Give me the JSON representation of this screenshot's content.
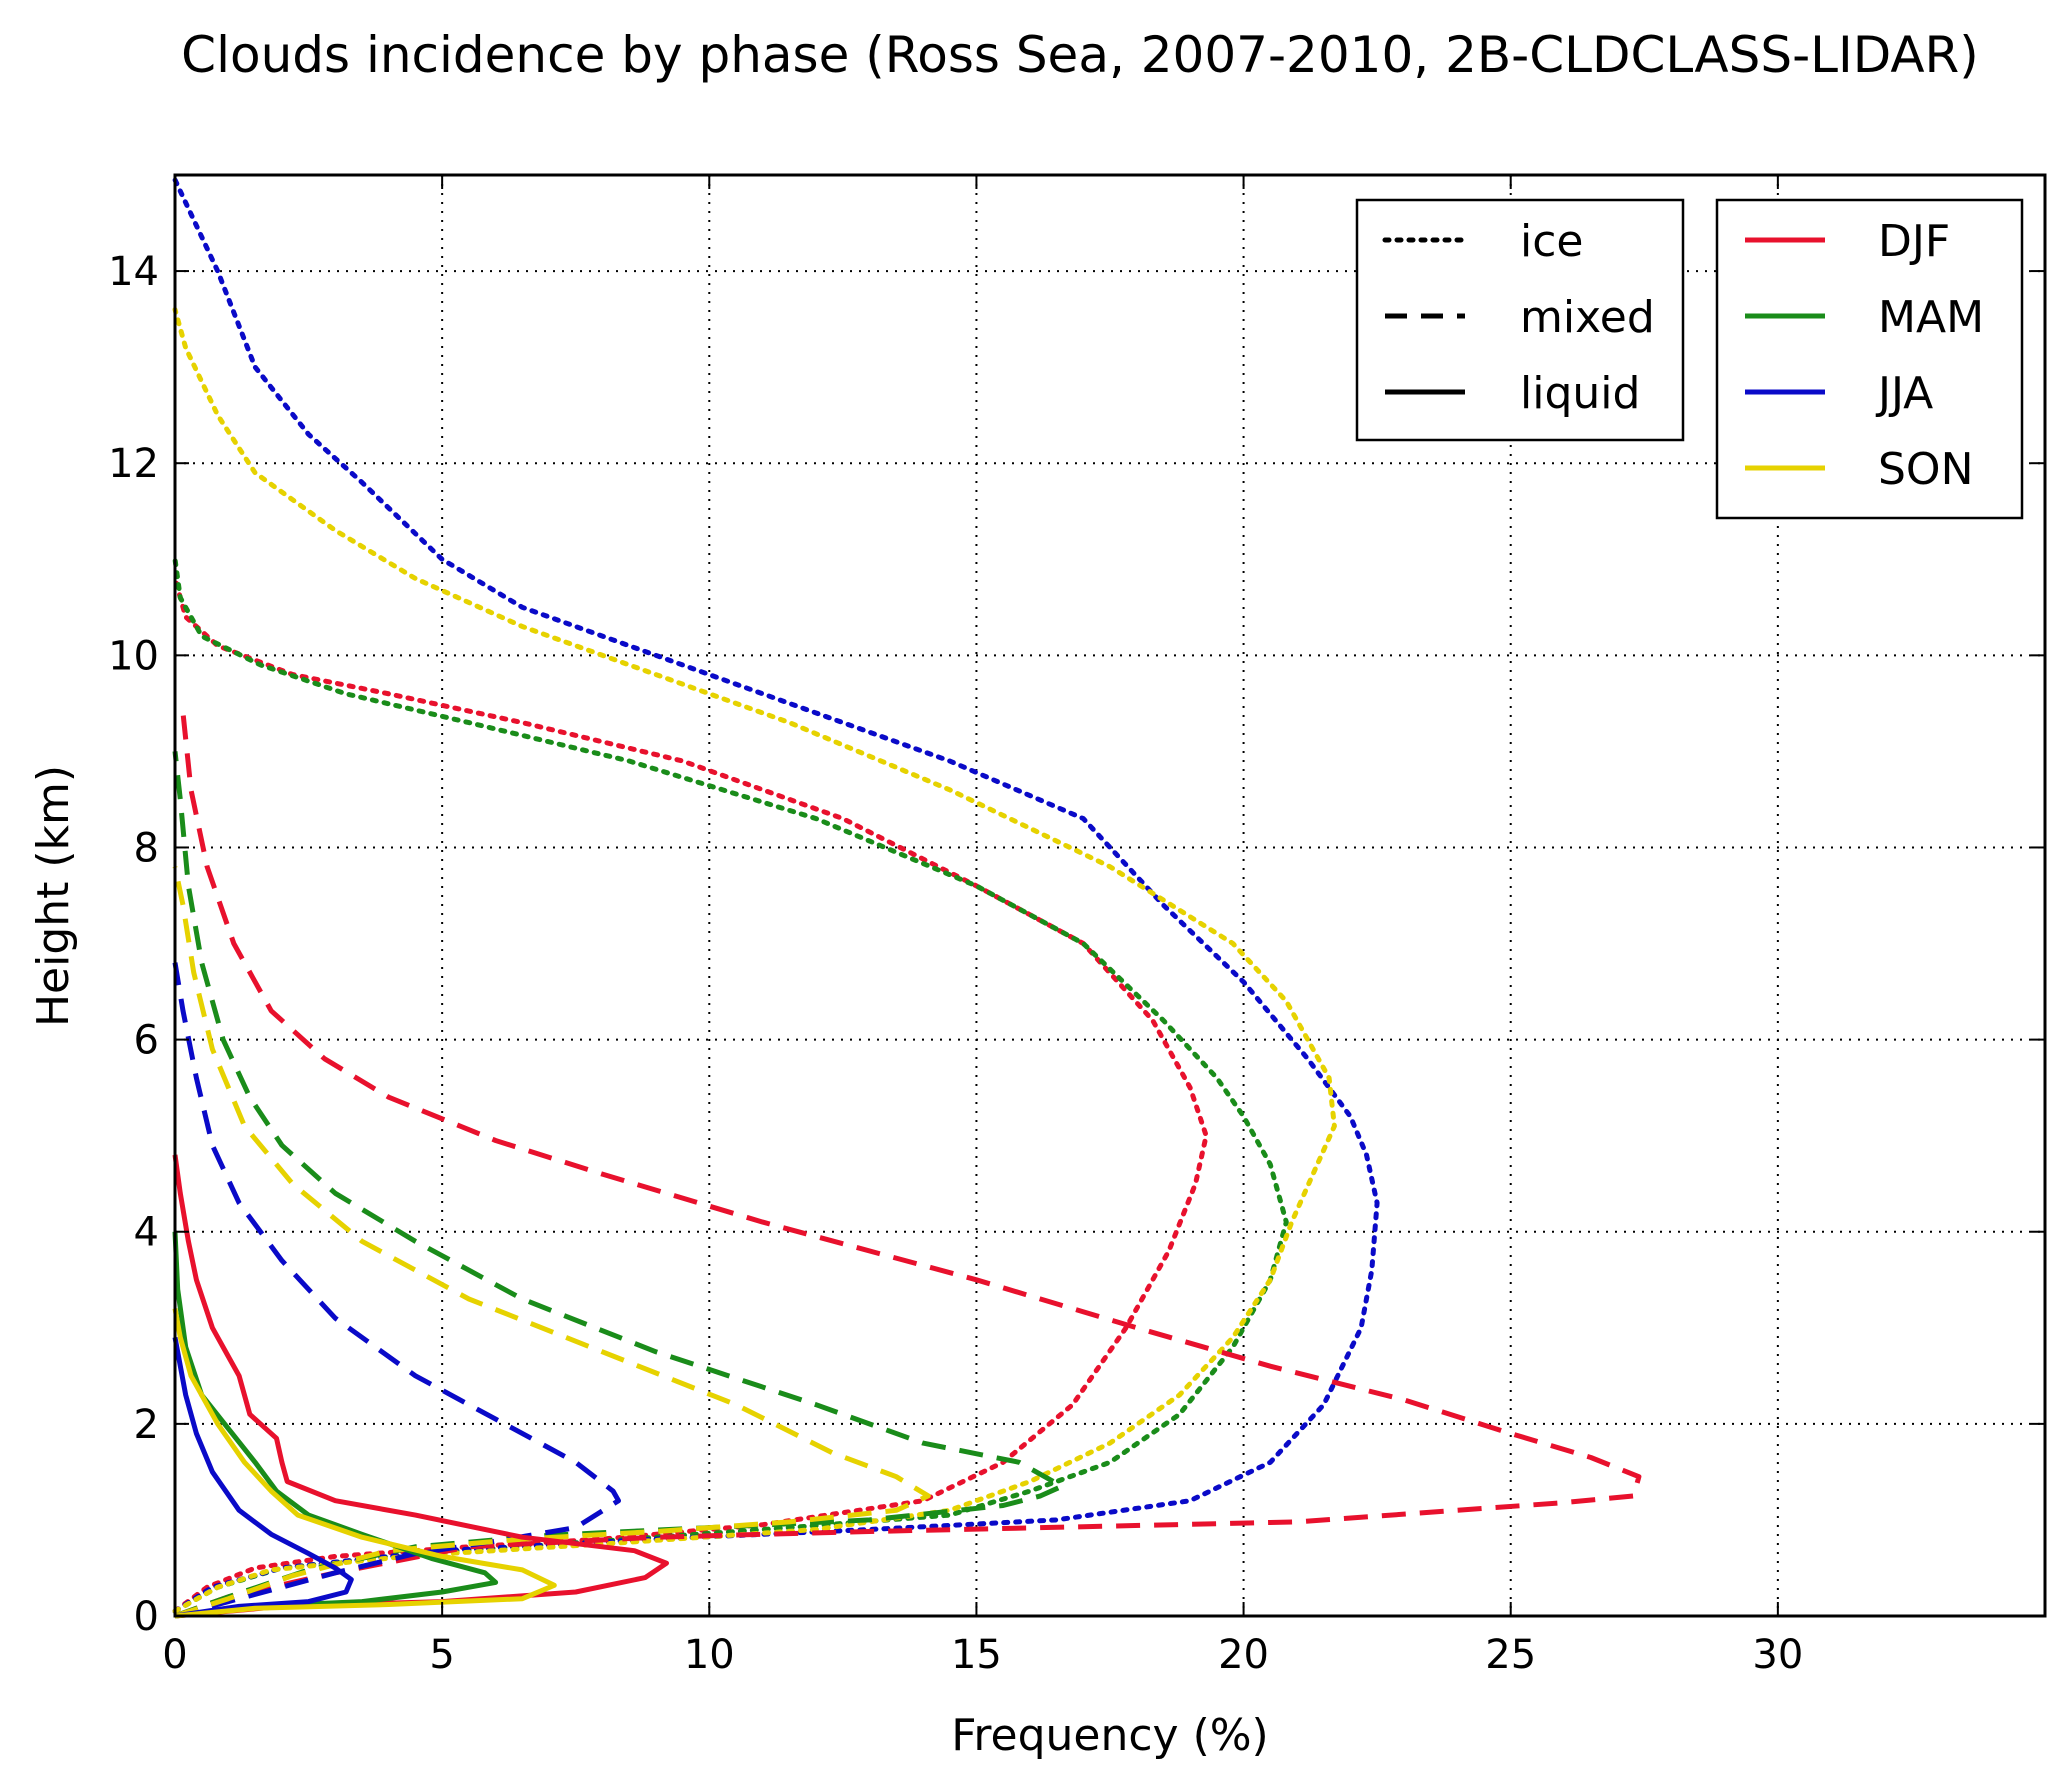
{
  "chart_data": {
    "type": "line",
    "title": "Clouds incidence by phase (Ross Sea, 2007-2010, 2B-CLDCLASS-LIDAR)",
    "xlabel": "Frequency (%)",
    "ylabel": "Height (km)",
    "xlim": [
      0,
      35
    ],
    "ylim": [
      0,
      15
    ],
    "xticks": [
      "0",
      "5",
      "10",
      "15",
      "20",
      "25",
      "30"
    ],
    "yticks": [
      "0",
      "2",
      "4",
      "6",
      "8",
      "10",
      "12",
      "14"
    ],
    "grid": true,
    "legend_phase": {
      "placement": "top-right",
      "entries": [
        {
          "label": "ice",
          "style": "dotted"
        },
        {
          "label": "mixed",
          "style": "dashed"
        },
        {
          "label": "liquid",
          "style": "solid"
        }
      ]
    },
    "legend_season": {
      "placement": "top-right",
      "entries": [
        {
          "label": "DJF",
          "color": "#e8112d"
        },
        {
          "label": "MAM",
          "color": "#1a8c1a"
        },
        {
          "label": "JJA",
          "color": "#0a0ac8"
        },
        {
          "label": "SON",
          "color": "#e6d200"
        }
      ]
    },
    "series": [
      {
        "season": "DJF",
        "phase": "ice",
        "color": "#e8112d",
        "style": "dotted",
        "points": [
          [
            0,
            0.05
          ],
          [
            0.6,
            0.3
          ],
          [
            1.5,
            0.5
          ],
          [
            3,
            0.62
          ],
          [
            5.5,
            0.72
          ],
          [
            8,
            0.8
          ],
          [
            11,
            0.95
          ],
          [
            14,
            1.2
          ],
          [
            15.5,
            1.6
          ],
          [
            16.8,
            2.2
          ],
          [
            17.8,
            3
          ],
          [
            18.6,
            3.8
          ],
          [
            19.1,
            4.5
          ],
          [
            19.3,
            5
          ],
          [
            19,
            5.5
          ],
          [
            18.3,
            6.2
          ],
          [
            17,
            7
          ],
          [
            15,
            7.6
          ],
          [
            12.5,
            8.3
          ],
          [
            9.5,
            8.9
          ],
          [
            6.5,
            9.3
          ],
          [
            4,
            9.6
          ],
          [
            2.2,
            9.8
          ],
          [
            0.8,
            10.1
          ],
          [
            0.2,
            10.4
          ],
          [
            0,
            10.8
          ]
        ]
      },
      {
        "season": "MAM",
        "phase": "ice",
        "color": "#1a8c1a",
        "style": "dotted",
        "points": [
          [
            0,
            0.05
          ],
          [
            0.8,
            0.3
          ],
          [
            2,
            0.5
          ],
          [
            4.5,
            0.65
          ],
          [
            8,
            0.78
          ],
          [
            11.5,
            0.92
          ],
          [
            14.5,
            1.05
          ],
          [
            16,
            1.3
          ],
          [
            17.5,
            1.6
          ],
          [
            18.8,
            2.1
          ],
          [
            19.8,
            2.8
          ],
          [
            20.5,
            3.5
          ],
          [
            20.8,
            4.1
          ],
          [
            20.5,
            4.7
          ],
          [
            20,
            5.2
          ],
          [
            19.5,
            5.6
          ],
          [
            18.5,
            6.2
          ],
          [
            17,
            7
          ],
          [
            15,
            7.6
          ],
          [
            12,
            8.3
          ],
          [
            8.5,
            8.9
          ],
          [
            5.5,
            9.3
          ],
          [
            3.2,
            9.6
          ],
          [
            1.6,
            9.9
          ],
          [
            0.5,
            10.2
          ],
          [
            0.1,
            10.6
          ],
          [
            0,
            11
          ]
        ]
      },
      {
        "season": "JJA",
        "phase": "ice",
        "color": "#0a0ac8",
        "style": "dotted",
        "points": [
          [
            0,
            0.05
          ],
          [
            0.7,
            0.3
          ],
          [
            2,
            0.5
          ],
          [
            5,
            0.68
          ],
          [
            9,
            0.8
          ],
          [
            13,
            0.9
          ],
          [
            16.5,
            1
          ],
          [
            19,
            1.2
          ],
          [
            20.5,
            1.6
          ],
          [
            21.5,
            2.2
          ],
          [
            22.2,
            3
          ],
          [
            22.4,
            3.6
          ],
          [
            22.5,
            4.3
          ],
          [
            22.3,
            4.8
          ],
          [
            22,
            5.2
          ],
          [
            21.2,
            5.8
          ],
          [
            20,
            6.6
          ],
          [
            18.5,
            7.4
          ],
          [
            17,
            8.3
          ],
          [
            14.5,
            8.9
          ],
          [
            11,
            9.6
          ],
          [
            8,
            10.2
          ],
          [
            6.5,
            10.5
          ],
          [
            5,
            11
          ],
          [
            3.5,
            11.8
          ],
          [
            2.5,
            12.3
          ],
          [
            1.5,
            13
          ],
          [
            0.8,
            14
          ],
          [
            0,
            14.95
          ]
        ]
      },
      {
        "season": "SON",
        "phase": "ice",
        "color": "#e6d200",
        "style": "dotted",
        "points": [
          [
            0,
            0.05
          ],
          [
            0.8,
            0.3
          ],
          [
            1.8,
            0.48
          ],
          [
            4.5,
            0.63
          ],
          [
            8,
            0.75
          ],
          [
            12,
            0.9
          ],
          [
            14.5,
            1.1
          ],
          [
            16,
            1.4
          ],
          [
            17.5,
            1.8
          ],
          [
            18.8,
            2.3
          ],
          [
            19.8,
            2.9
          ],
          [
            20.5,
            3.5
          ],
          [
            20.9,
            4.1
          ],
          [
            21.3,
            4.6
          ],
          [
            21.7,
            5.1
          ],
          [
            21.6,
            5.6
          ],
          [
            20.8,
            6.4
          ],
          [
            19.8,
            7
          ],
          [
            17.5,
            7.8
          ],
          [
            14.5,
            8.6
          ],
          [
            11.5,
            9.3
          ],
          [
            8.5,
            9.9
          ],
          [
            6.5,
            10.3
          ],
          [
            4.5,
            10.8
          ],
          [
            3,
            11.3
          ],
          [
            1.5,
            11.9
          ],
          [
            0.8,
            12.5
          ],
          [
            0.2,
            13.2
          ],
          [
            0,
            13.6
          ]
        ]
      },
      {
        "season": "DJF",
        "phase": "mixed",
        "color": "#e8112d",
        "style": "dashed",
        "points": [
          [
            0,
            0
          ],
          [
            1,
            0.2
          ],
          [
            3,
            0.45
          ],
          [
            5.5,
            0.72
          ],
          [
            9,
            0.82
          ],
          [
            13,
            0.88
          ],
          [
            17,
            0.93
          ],
          [
            21,
            0.98
          ],
          [
            24,
            1.1
          ],
          [
            26,
            1.18
          ],
          [
            27.3,
            1.25
          ],
          [
            27.4,
            1.45
          ],
          [
            26.5,
            1.65
          ],
          [
            25,
            1.9
          ],
          [
            23,
            2.25
          ],
          [
            20.5,
            2.6
          ],
          [
            18,
            3
          ],
          [
            15,
            3.5
          ],
          [
            11,
            4.1
          ],
          [
            8,
            4.6
          ],
          [
            6,
            4.95
          ],
          [
            4,
            5.4
          ],
          [
            2.8,
            5.8
          ],
          [
            1.8,
            6.3
          ],
          [
            1.1,
            7
          ],
          [
            0.6,
            7.8
          ],
          [
            0.3,
            8.6
          ],
          [
            0.15,
            9.4
          ]
        ]
      },
      {
        "season": "MAM",
        "phase": "mixed",
        "color": "#1a8c1a",
        "style": "dashed",
        "points": [
          [
            0,
            0
          ],
          [
            1,
            0.2
          ],
          [
            2.5,
            0.48
          ],
          [
            4.5,
            0.72
          ],
          [
            7,
            0.84
          ],
          [
            10,
            0.92
          ],
          [
            13,
            1
          ],
          [
            15.5,
            1.15
          ],
          [
            16.2,
            1.25
          ],
          [
            16.6,
            1.35
          ],
          [
            15.8,
            1.6
          ],
          [
            14,
            1.8
          ],
          [
            12,
            2.2
          ],
          [
            9,
            2.75
          ],
          [
            6.5,
            3.3
          ],
          [
            4.5,
            3.9
          ],
          [
            3,
            4.4
          ],
          [
            2,
            4.9
          ],
          [
            1.4,
            5.4
          ],
          [
            0.9,
            6
          ],
          [
            0.5,
            6.8
          ],
          [
            0.25,
            7.6
          ],
          [
            0.1,
            8.5
          ],
          [
            0,
            9
          ]
        ]
      },
      {
        "season": "JJA",
        "phase": "mixed",
        "color": "#0a0ac8",
        "style": "dashed",
        "points": [
          [
            0,
            0
          ],
          [
            1,
            0.15
          ],
          [
            2,
            0.3
          ],
          [
            3,
            0.45
          ],
          [
            4.5,
            0.65
          ],
          [
            6,
            0.78
          ],
          [
            7.5,
            0.92
          ],
          [
            8.3,
            1.2
          ],
          [
            8.2,
            1.3
          ],
          [
            7.5,
            1.6
          ],
          [
            6,
            2.05
          ],
          [
            4.5,
            2.5
          ],
          [
            3,
            3.1
          ],
          [
            2,
            3.7
          ],
          [
            1.2,
            4.3
          ],
          [
            0.7,
            4.9
          ],
          [
            0.4,
            5.6
          ],
          [
            0.15,
            6.3
          ],
          [
            0,
            6.8
          ]
        ]
      },
      {
        "season": "SON",
        "phase": "mixed",
        "color": "#e6d200",
        "style": "dashed",
        "points": [
          [
            0,
            0
          ],
          [
            1,
            0.18
          ],
          [
            2.2,
            0.42
          ],
          [
            4,
            0.68
          ],
          [
            6.5,
            0.8
          ],
          [
            9,
            0.88
          ],
          [
            11.5,
            0.98
          ],
          [
            13.5,
            1.1
          ],
          [
            14.1,
            1.25
          ],
          [
            13.5,
            1.45
          ],
          [
            12.3,
            1.7
          ],
          [
            10.5,
            2.2
          ],
          [
            8,
            2.75
          ],
          [
            5.5,
            3.3
          ],
          [
            3.5,
            3.9
          ],
          [
            2.2,
            4.5
          ],
          [
            1.3,
            5.1
          ],
          [
            0.7,
            5.9
          ],
          [
            0.35,
            6.7
          ],
          [
            0.15,
            7.4
          ],
          [
            0,
            7.8
          ]
        ]
      },
      {
        "season": "DJF",
        "phase": "liquid",
        "color": "#e8112d",
        "style": "solid",
        "points": [
          [
            0,
            0
          ],
          [
            2,
            0.1
          ],
          [
            5,
            0.15
          ],
          [
            7.5,
            0.25
          ],
          [
            8.8,
            0.4
          ],
          [
            9.2,
            0.55
          ],
          [
            8.6,
            0.68
          ],
          [
            6.5,
            0.82
          ],
          [
            4.5,
            1.05
          ],
          [
            3,
            1.2
          ],
          [
            2.1,
            1.4
          ],
          [
            2,
            1.6
          ],
          [
            1.9,
            1.85
          ],
          [
            1.4,
            2.1
          ],
          [
            1.2,
            2.5
          ],
          [
            1,
            2.7
          ],
          [
            0.7,
            3
          ],
          [
            0.4,
            3.5
          ],
          [
            0.25,
            3.9
          ],
          [
            0.1,
            4.4
          ],
          [
            0,
            4.8
          ]
        ]
      },
      {
        "season": "MAM",
        "phase": "liquid",
        "color": "#1a8c1a",
        "style": "solid",
        "points": [
          [
            0,
            0
          ],
          [
            1.5,
            0.1
          ],
          [
            3.5,
            0.15
          ],
          [
            5,
            0.25
          ],
          [
            6,
            0.35
          ],
          [
            5.8,
            0.45
          ],
          [
            4.8,
            0.6
          ],
          [
            3.5,
            0.85
          ],
          [
            2.5,
            1.05
          ],
          [
            1.9,
            1.3
          ],
          [
            1.5,
            1.6
          ],
          [
            1,
            1.95
          ],
          [
            0.5,
            2.3
          ],
          [
            0.2,
            2.8
          ],
          [
            0.05,
            3.4
          ],
          [
            0,
            4
          ]
        ]
      },
      {
        "season": "JJA",
        "phase": "liquid",
        "color": "#0a0ac8",
        "style": "solid",
        "points": [
          [
            0,
            0
          ],
          [
            1.2,
            0.1
          ],
          [
            2.5,
            0.15
          ],
          [
            3.2,
            0.25
          ],
          [
            3.3,
            0.38
          ],
          [
            3,
            0.5
          ],
          [
            2.5,
            0.65
          ],
          [
            1.8,
            0.85
          ],
          [
            1.2,
            1.1
          ],
          [
            0.7,
            1.5
          ],
          [
            0.4,
            1.9
          ],
          [
            0.2,
            2.3
          ],
          [
            0,
            2.9
          ]
        ]
      },
      {
        "season": "SON",
        "phase": "liquid",
        "color": "#e6d200",
        "style": "solid",
        "points": [
          [
            0,
            0
          ],
          [
            1.5,
            0.08
          ],
          [
            4,
            0.12
          ],
          [
            6.5,
            0.18
          ],
          [
            7.1,
            0.32
          ],
          [
            6.5,
            0.48
          ],
          [
            5,
            0.62
          ],
          [
            3.5,
            0.82
          ],
          [
            2.3,
            1.05
          ],
          [
            1.8,
            1.3
          ],
          [
            1.3,
            1.6
          ],
          [
            0.8,
            2
          ],
          [
            0.3,
            2.5
          ],
          [
            0.1,
            2.9
          ],
          [
            0,
            3.2
          ]
        ]
      }
    ]
  }
}
